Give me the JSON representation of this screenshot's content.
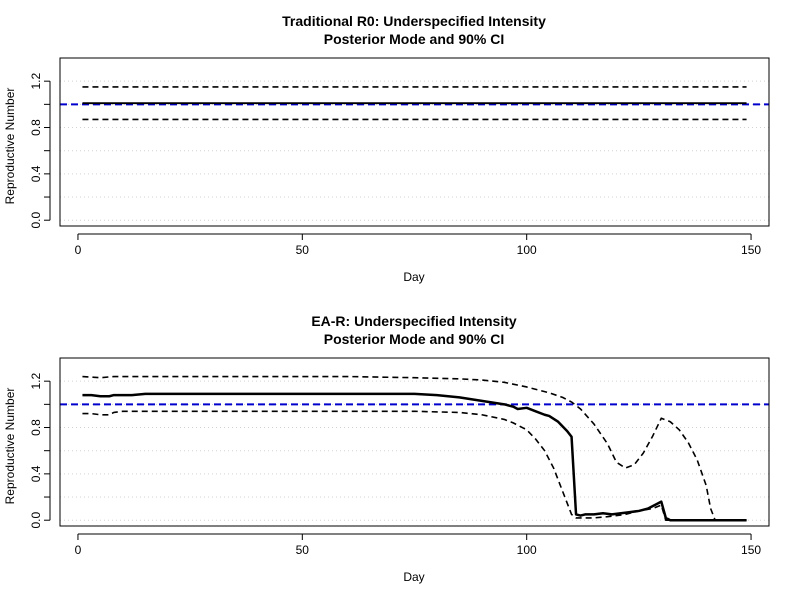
{
  "chart_data": [
    {
      "type": "line",
      "title": "Traditional R0: Underspecified Intensity",
      "subtitle": "Posterior Mode and 90% CI",
      "xlabel": "Day",
      "ylabel": "Reproductive Number",
      "xlim": [
        -4,
        154
      ],
      "ylim": [
        -0.05,
        1.4
      ],
      "xticks": [
        0,
        50,
        100,
        150
      ],
      "yticks": [
        0.0,
        0.2,
        0.4,
        0.6,
        0.8,
        1.0,
        1.2
      ],
      "ytick_labels": [
        "0.0",
        "",
        "0.4",
        "",
        "0.8",
        "",
        "1.2"
      ],
      "grid": true,
      "reference_line": {
        "y": 1.0,
        "color": "#0000cc"
      },
      "series": [
        {
          "role": "mode",
          "style": "solid",
          "x": [
            1,
            149
          ],
          "y": [
            1.01,
            1.01
          ]
        },
        {
          "role": "upper",
          "style": "dashed",
          "x": [
            1,
            149
          ],
          "y": [
            1.15,
            1.15
          ]
        },
        {
          "role": "lower",
          "style": "dashed",
          "x": [
            1,
            149
          ],
          "y": [
            0.87,
            0.87
          ]
        }
      ]
    },
    {
      "type": "line",
      "title": "EA-R: Underspecified Intensity",
      "subtitle": "Posterior Mode and 90% CI",
      "xlabel": "Day",
      "ylabel": "Reproductive Number",
      "xlim": [
        -4,
        154
      ],
      "ylim": [
        -0.05,
        1.4
      ],
      "xticks": [
        0,
        50,
        100,
        150
      ],
      "yticks": [
        0.0,
        0.2,
        0.4,
        0.6,
        0.8,
        1.0,
        1.2
      ],
      "ytick_labels": [
        "0.0",
        "",
        "0.4",
        "",
        "0.8",
        "",
        "1.2"
      ],
      "grid": true,
      "reference_line": {
        "y": 1.0,
        "color": "#0000cc"
      },
      "series": [
        {
          "role": "mode",
          "style": "solid",
          "x": [
            1,
            3,
            5,
            7,
            8,
            10,
            12,
            15,
            20,
            40,
            60,
            75,
            80,
            85,
            90,
            95,
            97,
            98,
            100,
            102,
            104,
            105,
            107,
            109,
            110,
            111,
            112,
            113,
            115,
            117,
            119,
            121,
            123,
            125,
            127,
            129,
            130,
            131,
            132,
            135,
            140,
            145,
            149
          ],
          "y": [
            1.08,
            1.08,
            1.07,
            1.07,
            1.08,
            1.08,
            1.08,
            1.09,
            1.09,
            1.09,
            1.09,
            1.09,
            1.08,
            1.06,
            1.03,
            1.0,
            0.98,
            0.96,
            0.97,
            0.94,
            0.91,
            0.9,
            0.85,
            0.77,
            0.72,
            0.05,
            0.04,
            0.05,
            0.05,
            0.06,
            0.05,
            0.06,
            0.07,
            0.08,
            0.1,
            0.14,
            0.16,
            0.02,
            0.0,
            0.0,
            0.0,
            0.0,
            0.0
          ]
        },
        {
          "role": "upper",
          "style": "dashed",
          "x": [
            1,
            5,
            8,
            10,
            20,
            40,
            60,
            75,
            85,
            90,
            95,
            100,
            105,
            108,
            110,
            112,
            115,
            118,
            120,
            122,
            124,
            126,
            128,
            130,
            132,
            134,
            136,
            138,
            140,
            141,
            142,
            145,
            149
          ],
          "y": [
            1.24,
            1.23,
            1.24,
            1.24,
            1.24,
            1.24,
            1.24,
            1.23,
            1.22,
            1.21,
            1.19,
            1.15,
            1.1,
            1.06,
            1.02,
            0.96,
            0.83,
            0.66,
            0.5,
            0.45,
            0.48,
            0.58,
            0.72,
            0.88,
            0.85,
            0.78,
            0.67,
            0.52,
            0.3,
            0.1,
            0.0,
            0.0,
            0.0
          ]
        },
        {
          "role": "lower",
          "style": "dashed",
          "x": [
            1,
            3,
            5,
            7,
            8,
            10,
            20,
            40,
            60,
            75,
            85,
            90,
            95,
            97,
            100,
            102,
            104,
            106,
            108,
            110,
            111,
            113,
            115,
            118,
            122,
            125,
            128,
            130,
            131,
            133,
            140,
            149
          ],
          "y": [
            0.92,
            0.92,
            0.91,
            0.91,
            0.93,
            0.94,
            0.94,
            0.94,
            0.94,
            0.94,
            0.93,
            0.91,
            0.87,
            0.84,
            0.78,
            0.7,
            0.6,
            0.45,
            0.25,
            0.05,
            0.02,
            0.02,
            0.02,
            0.03,
            0.05,
            0.08,
            0.1,
            0.13,
            0.0,
            0.0,
            0.0,
            0.0
          ]
        }
      ]
    }
  ],
  "colors": {
    "line": "#000000",
    "reference": "#0000cc",
    "grid": "#d3d3d3",
    "axis": "#000000"
  }
}
